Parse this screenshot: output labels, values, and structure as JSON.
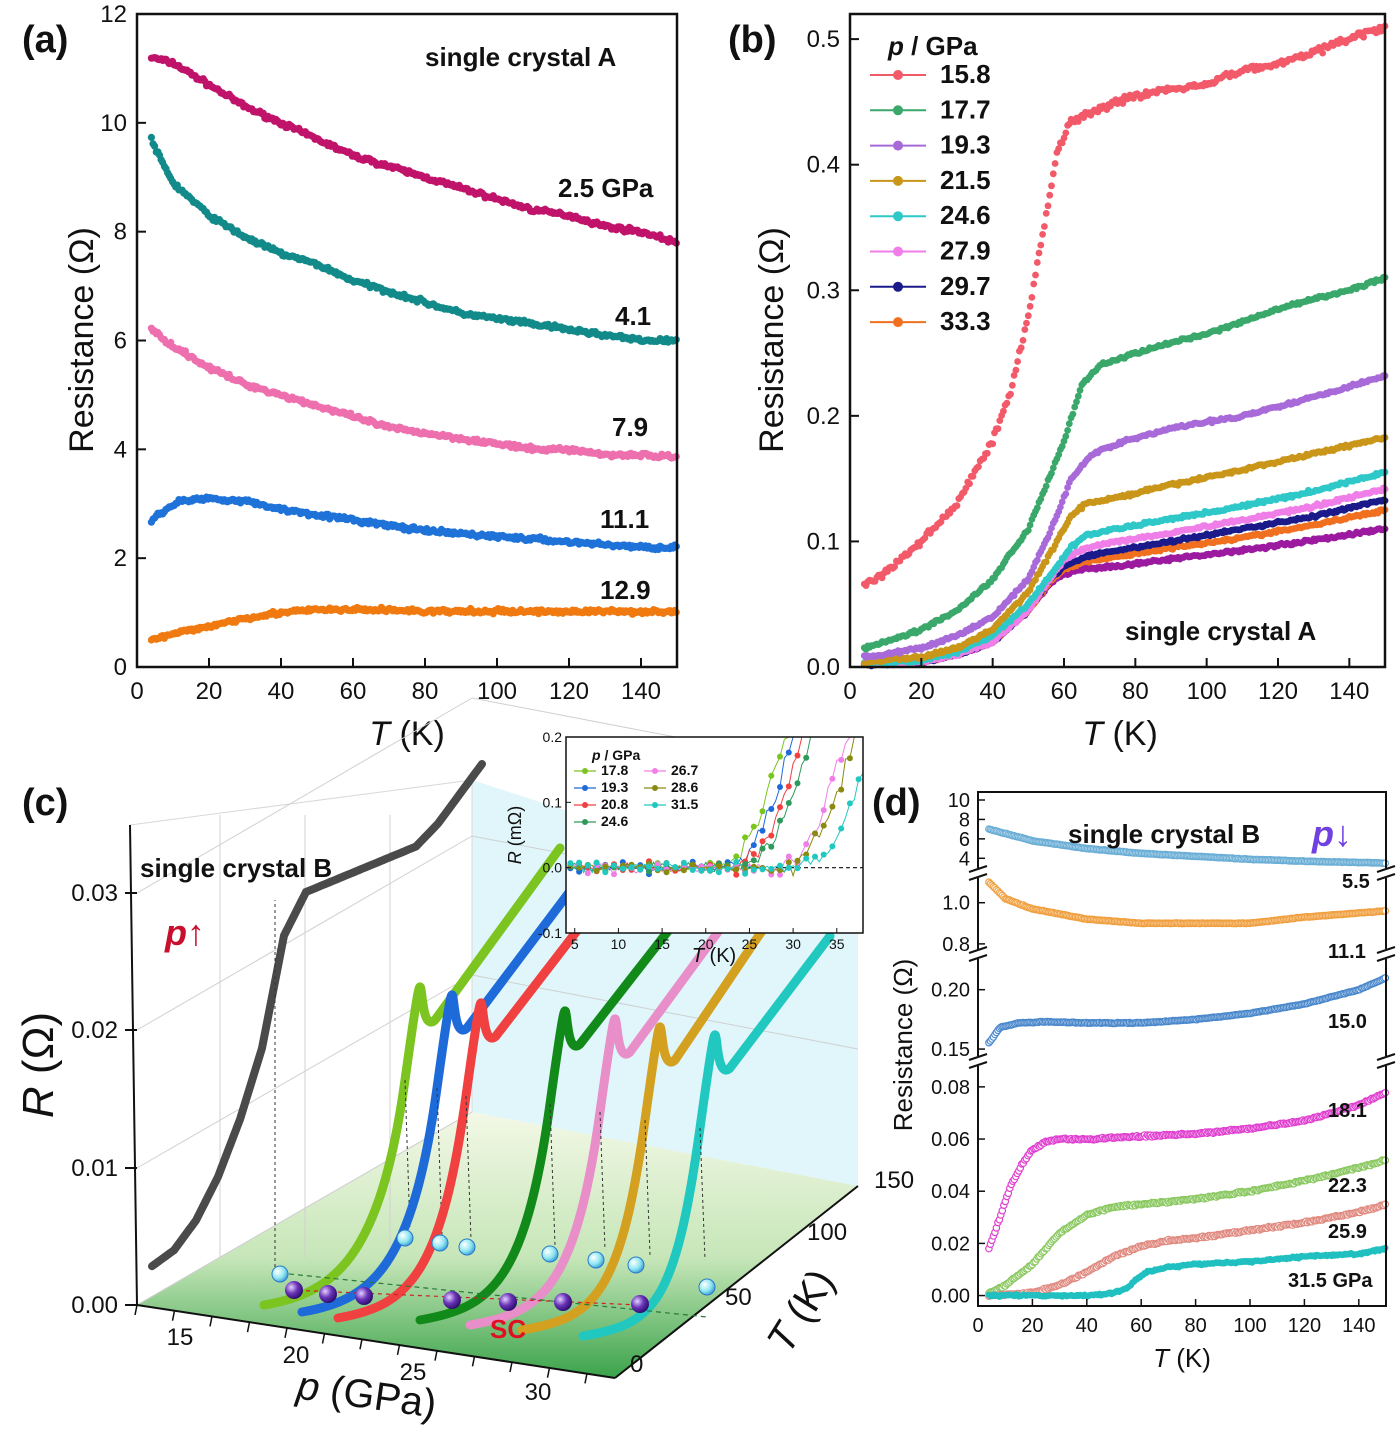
{
  "panels": {
    "a": {
      "label": "(a)"
    },
    "b": {
      "label": "(b)"
    },
    "c": {
      "label": "(c)"
    },
    "d": {
      "label": "(d)"
    }
  },
  "chart_data": [
    {
      "id": "a",
      "type": "scatter",
      "title": "single crystal A",
      "xlabel_italic": "T",
      "xlabel_unit": " (K)",
      "ylabel": "Resistance (Ω)",
      "xlim": [
        0,
        150
      ],
      "ylim": [
        0,
        12
      ],
      "xticks": [
        0,
        20,
        40,
        60,
        80,
        100,
        120,
        140
      ],
      "yticks": [
        0,
        2,
        4,
        6,
        8,
        10,
        12
      ],
      "series": [
        {
          "label": "2.5 GPa",
          "color": "#c0136a",
          "x": [
            4,
            10,
            20,
            30,
            40,
            50,
            60,
            70,
            80,
            90,
            100,
            110,
            120,
            130,
            140,
            150
          ],
          "y": [
            11.2,
            11.1,
            10.7,
            10.3,
            10.0,
            9.7,
            9.4,
            9.2,
            9.0,
            8.8,
            8.6,
            8.4,
            8.3,
            8.1,
            8.0,
            7.8
          ]
        },
        {
          "label": "4.1",
          "color": "#128a8a",
          "x": [
            4,
            6,
            10,
            20,
            30,
            40,
            50,
            60,
            70,
            80,
            90,
            100,
            110,
            120,
            130,
            140,
            150
          ],
          "y": [
            9.7,
            9.4,
            8.9,
            8.3,
            7.9,
            7.6,
            7.4,
            7.1,
            6.9,
            6.7,
            6.5,
            6.4,
            6.3,
            6.2,
            6.1,
            6.0,
            6.0
          ]
        },
        {
          "label": "7.9",
          "color": "#ee6fae",
          "x": [
            4,
            10,
            20,
            30,
            40,
            50,
            60,
            70,
            80,
            90,
            100,
            110,
            120,
            130,
            140,
            150
          ],
          "y": [
            6.2,
            5.9,
            5.5,
            5.2,
            5.0,
            4.8,
            4.6,
            4.4,
            4.3,
            4.2,
            4.1,
            4.0,
            4.0,
            3.9,
            3.9,
            3.85
          ]
        },
        {
          "label": "11.1",
          "color": "#1e72d8",
          "x": [
            4,
            8,
            12,
            20,
            30,
            40,
            50,
            60,
            70,
            80,
            90,
            100,
            110,
            120,
            130,
            140,
            150
          ],
          "y": [
            2.7,
            2.9,
            3.05,
            3.1,
            3.05,
            2.9,
            2.8,
            2.7,
            2.6,
            2.5,
            2.45,
            2.4,
            2.35,
            2.3,
            2.25,
            2.2,
            2.2
          ]
        },
        {
          "label": "12.9",
          "color": "#f07a10",
          "x": [
            4,
            10,
            20,
            30,
            40,
            50,
            60,
            70,
            80,
            90,
            100,
            110,
            120,
            130,
            140,
            150
          ],
          "y": [
            0.5,
            0.6,
            0.75,
            0.9,
            1.0,
            1.05,
            1.05,
            1.05,
            1.02,
            1.02,
            1.02,
            1.02,
            1.02,
            1.02,
            1.02,
            1.02
          ]
        }
      ],
      "annotations": [
        "2.5 GPa",
        "4.1",
        "7.9",
        "11.1",
        "12.9"
      ]
    },
    {
      "id": "b",
      "type": "scatter",
      "title": "single crystal A",
      "xlabel_italic": "T",
      "xlabel_unit": " (K)",
      "ylabel": "Resistance (Ω)",
      "xlim": [
        0,
        150
      ],
      "ylim": [
        0,
        0.52
      ],
      "xticks": [
        0,
        20,
        40,
        60,
        80,
        100,
        120,
        140
      ],
      "yticks": [
        0.0,
        0.1,
        0.2,
        0.3,
        0.4,
        0.5
      ],
      "legend_title_italic": "p",
      "legend_title_unit": " / GPa",
      "legend_position": "top-left",
      "series": [
        {
          "name": "15.8",
          "color": "#f25a6a",
          "x": [
            4,
            10,
            20,
            30,
            40,
            45,
            50,
            55,
            58,
            62,
            70,
            80,
            90,
            100,
            110,
            120,
            130,
            140,
            150
          ],
          "y": [
            0.065,
            0.075,
            0.1,
            0.13,
            0.18,
            0.22,
            0.28,
            0.36,
            0.41,
            0.435,
            0.445,
            0.455,
            0.46,
            0.465,
            0.475,
            0.48,
            0.49,
            0.5,
            0.51
          ]
        },
        {
          "name": "17.7",
          "color": "#3aa86a",
          "x": [
            4,
            10,
            20,
            30,
            40,
            50,
            60,
            65,
            70,
            80,
            90,
            100,
            110,
            120,
            130,
            140,
            150
          ],
          "y": [
            0.015,
            0.02,
            0.03,
            0.045,
            0.07,
            0.11,
            0.18,
            0.225,
            0.24,
            0.25,
            0.258,
            0.265,
            0.275,
            0.285,
            0.293,
            0.3,
            0.31
          ]
        },
        {
          "name": "19.3",
          "color": "#a86ad8",
          "x": [
            4,
            10,
            20,
            30,
            40,
            50,
            58,
            62,
            68,
            75,
            90,
            110,
            130,
            150
          ],
          "y": [
            0.008,
            0.01,
            0.015,
            0.025,
            0.04,
            0.07,
            0.12,
            0.15,
            0.17,
            0.178,
            0.19,
            0.2,
            0.215,
            0.232
          ]
        },
        {
          "name": "21.5",
          "color": "#c9961a",
          "x": [
            4,
            20,
            30,
            40,
            50,
            58,
            62,
            66,
            75,
            90,
            110,
            130,
            150
          ],
          "y": [
            0.004,
            0.008,
            0.015,
            0.03,
            0.06,
            0.1,
            0.12,
            0.13,
            0.135,
            0.145,
            0.157,
            0.17,
            0.183
          ]
        },
        {
          "name": "24.6",
          "color": "#2ec8c8",
          "x": [
            4,
            20,
            30,
            40,
            50,
            58,
            62,
            66,
            75,
            90,
            110,
            130,
            150
          ],
          "y": [
            0.003,
            0.005,
            0.012,
            0.025,
            0.05,
            0.08,
            0.095,
            0.105,
            0.11,
            0.118,
            0.128,
            0.14,
            0.155
          ]
        },
        {
          "name": "27.9",
          "color": "#f07ee8",
          "x": [
            4,
            20,
            30,
            40,
            50,
            56,
            60,
            66,
            75,
            90,
            110,
            130,
            150
          ],
          "y": [
            0.002,
            0.004,
            0.01,
            0.02,
            0.045,
            0.07,
            0.085,
            0.095,
            0.1,
            0.107,
            0.117,
            0.128,
            0.142
          ]
        },
        {
          "name": "29.7",
          "color": "#1a1a8a",
          "x": [
            4,
            20,
            30,
            40,
            50,
            56,
            60,
            66,
            75,
            90,
            110,
            130,
            150
          ],
          "y": [
            0.002,
            0.004,
            0.01,
            0.02,
            0.045,
            0.07,
            0.08,
            0.088,
            0.093,
            0.1,
            0.11,
            0.12,
            0.133
          ]
        },
        {
          "name": "33.3",
          "color": "#f07020",
          "x": [
            4,
            20,
            30,
            40,
            50,
            56,
            60,
            66,
            75,
            90,
            110,
            130,
            150
          ],
          "y": [
            0.002,
            0.004,
            0.01,
            0.02,
            0.045,
            0.068,
            0.078,
            0.084,
            0.088,
            0.095,
            0.103,
            0.113,
            0.125
          ]
        },
        {
          "color": "#9c1aa0",
          "x": [
            4,
            20,
            30,
            40,
            50,
            56,
            60,
            66,
            75,
            90,
            110,
            130,
            150
          ],
          "y": [
            0.002,
            0.004,
            0.01,
            0.02,
            0.045,
            0.066,
            0.074,
            0.078,
            0.08,
            0.086,
            0.093,
            0.101,
            0.11
          ]
        }
      ]
    },
    {
      "id": "c",
      "type": "line",
      "title": "single crystal B",
      "zlabel_italic": "R",
      "zlabel_unit": " (Ω)",
      "xlabel_italic": "p",
      "xlabel_unit": " (GPa)",
      "ylabel_italic": "T",
      "ylabel_unit": " (K)",
      "pressure_label_italic": "p",
      "pressure_arrow": "↑",
      "sc_label": "SC",
      "zticks": [
        "0.00",
        "0.01",
        "0.02",
        "0.03"
      ],
      "xticks": [
        "15",
        "20",
        "25",
        "30"
      ],
      "yticks": [
        "0",
        "50",
        "100",
        "150"
      ],
      "series": [
        {
          "color": "#4a4a4a",
          "x": [
            0,
            10,
            20,
            30,
            40,
            50,
            55,
            60,
            70,
            80,
            90,
            100,
            110,
            120,
            130,
            140,
            150
          ],
          "y": [
            0.001,
            0.002,
            0.004,
            0.007,
            0.011,
            0.016,
            0.02,
            0.024,
            0.027,
            0.0275,
            0.028,
            0.0285,
            0.029,
            0.0295,
            0.031,
            0.033,
            0.035
          ]
        },
        {
          "color": "#7cc420"
        },
        {
          "color": "#1e6ad8"
        },
        {
          "color": "#f04040"
        },
        {
          "color": "#128a1a"
        },
        {
          "color": "#e88ec8"
        },
        {
          "color": "#d4a020"
        },
        {
          "color": "#20c8c0"
        }
      ],
      "inset": {
        "type": "scatter",
        "xlabel_italic": "T",
        "xlabel_unit": " (K)",
        "ylabel_italic": "R",
        "ylabel_unit": " (mΩ)",
        "xlim": [
          4,
          38
        ],
        "ylim": [
          -0.1,
          0.2
        ],
        "xticks": [
          5,
          10,
          15,
          20,
          25,
          30,
          35
        ],
        "yticks": [
          "-0.1",
          "0.0",
          "0.1",
          "0.2"
        ],
        "legend_title_italic": "p",
        "legend_title_unit": " / GPa",
        "series": [
          {
            "name": "17.8",
            "color": "#7cc420",
            "onset": 21
          },
          {
            "name": "19.3",
            "color": "#1e6ad8",
            "onset": 22
          },
          {
            "name": "20.8",
            "color": "#f04040",
            "onset": 23
          },
          {
            "name": "24.6",
            "color": "#2e9a5a",
            "onset": 24
          },
          {
            "name": "26.7",
            "color": "#f07ee8",
            "onset": 28
          },
          {
            "name": "28.6",
            "color": "#8a8a10",
            "onset": 29
          },
          {
            "name": "31.5",
            "color": "#20c8c0",
            "onset": 31
          }
        ]
      }
    },
    {
      "id": "d",
      "type": "scatter",
      "title": "single crystal B",
      "pressure_label_italic": "p",
      "pressure_arrow": "↓",
      "xlabel_italic": "T",
      "xlabel_unit": " (K)",
      "ylabel": "Resistance (Ω)",
      "xlim": [
        0,
        150
      ],
      "xticks": [
        0,
        20,
        40,
        60,
        80,
        100,
        120,
        140
      ],
      "segments": [
        {
          "range": [
            3,
            10
          ],
          "ticks": [
            "4",
            "6",
            "8",
            "10"
          ],
          "tickvals": [
            4,
            6,
            8,
            10
          ]
        },
        {
          "range": [
            0.78,
            1.12
          ],
          "ticks": [
            "0.8",
            "1.0"
          ],
          "tickvals": [
            0.8,
            1.0
          ]
        },
        {
          "range": [
            0.145,
            0.225
          ],
          "ticks": [
            "0.15",
            "0.20"
          ],
          "tickvals": [
            0.15,
            0.2
          ]
        },
        {
          "range": [
            -0.004,
            0.088
          ],
          "ticks": [
            "0.00",
            "0.02",
            "0.04",
            "0.06",
            "0.08"
          ],
          "tickvals": [
            0.0,
            0.02,
            0.04,
            0.06,
            0.08
          ]
        }
      ],
      "series": [
        {
          "label": "5.5",
          "segment": 0,
          "color": "#6aaed6",
          "x": [
            4,
            20,
            40,
            60,
            80,
            100,
            120,
            150
          ],
          "y": [
            7.0,
            5.8,
            5.0,
            4.5,
            4.2,
            3.9,
            3.7,
            3.5
          ]
        },
        {
          "label": "11.1",
          "segment": 1,
          "color": "#f0a040",
          "x": [
            4,
            10,
            20,
            40,
            60,
            80,
            100,
            120,
            150
          ],
          "y": [
            1.1,
            1.02,
            0.97,
            0.92,
            0.9,
            0.9,
            0.9,
            0.93,
            0.96
          ]
        },
        {
          "label": "15.0",
          "segment": 2,
          "color": "#4a88cc",
          "x": [
            4,
            8,
            15,
            25,
            40,
            60,
            80,
            100,
            120,
            140,
            150
          ],
          "y": [
            0.155,
            0.168,
            0.172,
            0.173,
            0.172,
            0.172,
            0.175,
            0.18,
            0.188,
            0.2,
            0.21
          ]
        },
        {
          "label": "18.1",
          "segment": 3,
          "color": "#e040d0",
          "x": [
            4,
            8,
            12,
            16,
            20,
            25,
            30,
            40,
            60,
            80,
            100,
            120,
            140,
            150
          ],
          "y": [
            0.018,
            0.03,
            0.042,
            0.05,
            0.056,
            0.059,
            0.06,
            0.06,
            0.061,
            0.062,
            0.064,
            0.067,
            0.073,
            0.078
          ]
        },
        {
          "label": "22.3",
          "segment": 3,
          "color": "#8ac860",
          "x": [
            4,
            10,
            20,
            30,
            40,
            50,
            60,
            70,
            80,
            100,
            120,
            140,
            150
          ],
          "y": [
            0.001,
            0.004,
            0.012,
            0.024,
            0.031,
            0.034,
            0.035,
            0.036,
            0.037,
            0.04,
            0.044,
            0.049,
            0.052
          ]
        },
        {
          "label": "25.9",
          "segment": 3,
          "color": "#e08a80",
          "x": [
            4,
            20,
            30,
            40,
            50,
            60,
            65,
            70,
            80,
            100,
            120,
            140,
            150
          ],
          "y": [
            0.0,
            0.001,
            0.004,
            0.009,
            0.015,
            0.019,
            0.02,
            0.021,
            0.022,
            0.025,
            0.028,
            0.032,
            0.035
          ]
        },
        {
          "label": "31.5 GPa",
          "segment": 3,
          "color": "#20c0c0",
          "x": [
            4,
            40,
            50,
            55,
            58,
            62,
            66,
            70,
            80,
            100,
            120,
            140,
            150
          ],
          "y": [
            0.0,
            0.0,
            0.001,
            0.003,
            0.006,
            0.009,
            0.01,
            0.011,
            0.012,
            0.013,
            0.015,
            0.016,
            0.018
          ]
        }
      ]
    }
  ]
}
